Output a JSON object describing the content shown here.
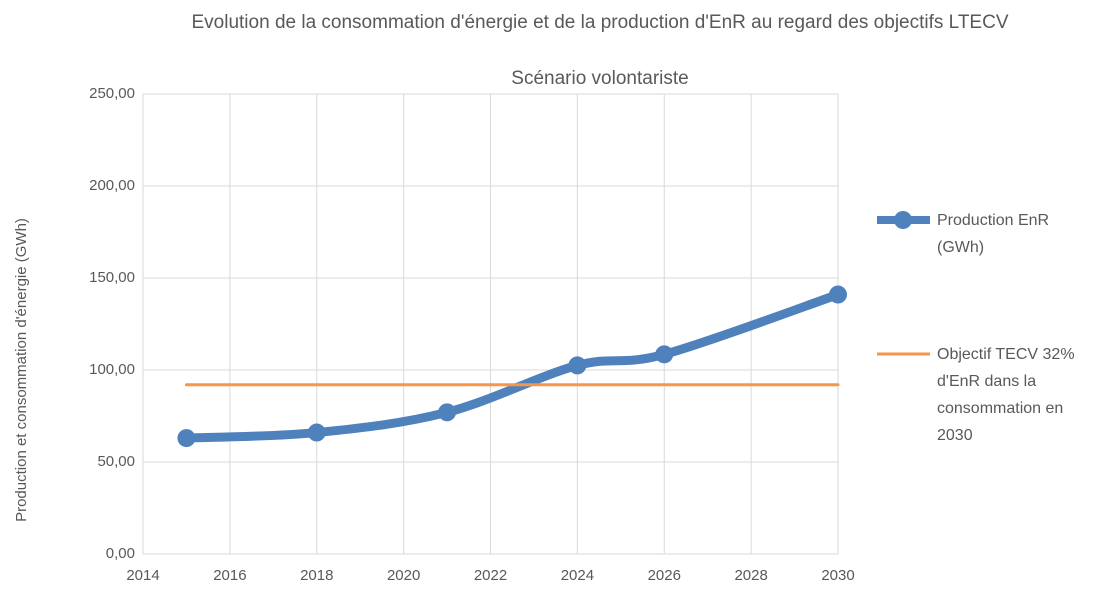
{
  "chart_data": {
    "type": "line",
    "title": "Evolution de la consommation d'énergie et de la production d'EnR au regard des objectifs LTECV",
    "subtitle": "Scénario volontariste",
    "y_label": "Production et consommation d'énergie (GWh)",
    "xlim": [
      2014,
      2030
    ],
    "xticks": [
      2014,
      2016,
      2018,
      2020,
      2022,
      2024,
      2026,
      2028,
      2030
    ],
    "ylim": [
      0,
      250
    ],
    "yticks": [
      {
        "value": 0,
        "label": "0,00"
      },
      {
        "value": 50,
        "label": "50,00"
      },
      {
        "value": 100,
        "label": "100,00"
      },
      {
        "value": 150,
        "label": "150,00"
      },
      {
        "value": 200,
        "label": "200,00"
      },
      {
        "value": 250,
        "label": "250,00"
      }
    ],
    "grid": true,
    "legend": "right",
    "smooth": true,
    "series": [
      {
        "name": "Production EnR (GWh)",
        "color": "#4f81bd",
        "markers": true,
        "x": [
          2015,
          2018,
          2021,
          2024,
          2026,
          2030
        ],
        "values": [
          63,
          66,
          77,
          102.5,
          108.5,
          141
        ]
      },
      {
        "name": "Objectif TECV 32% d'EnR dans la consommation en 2030",
        "color": "#f79646",
        "markers": false,
        "x": [
          2015,
          2030
        ],
        "values": [
          92,
          92
        ]
      }
    ]
  }
}
